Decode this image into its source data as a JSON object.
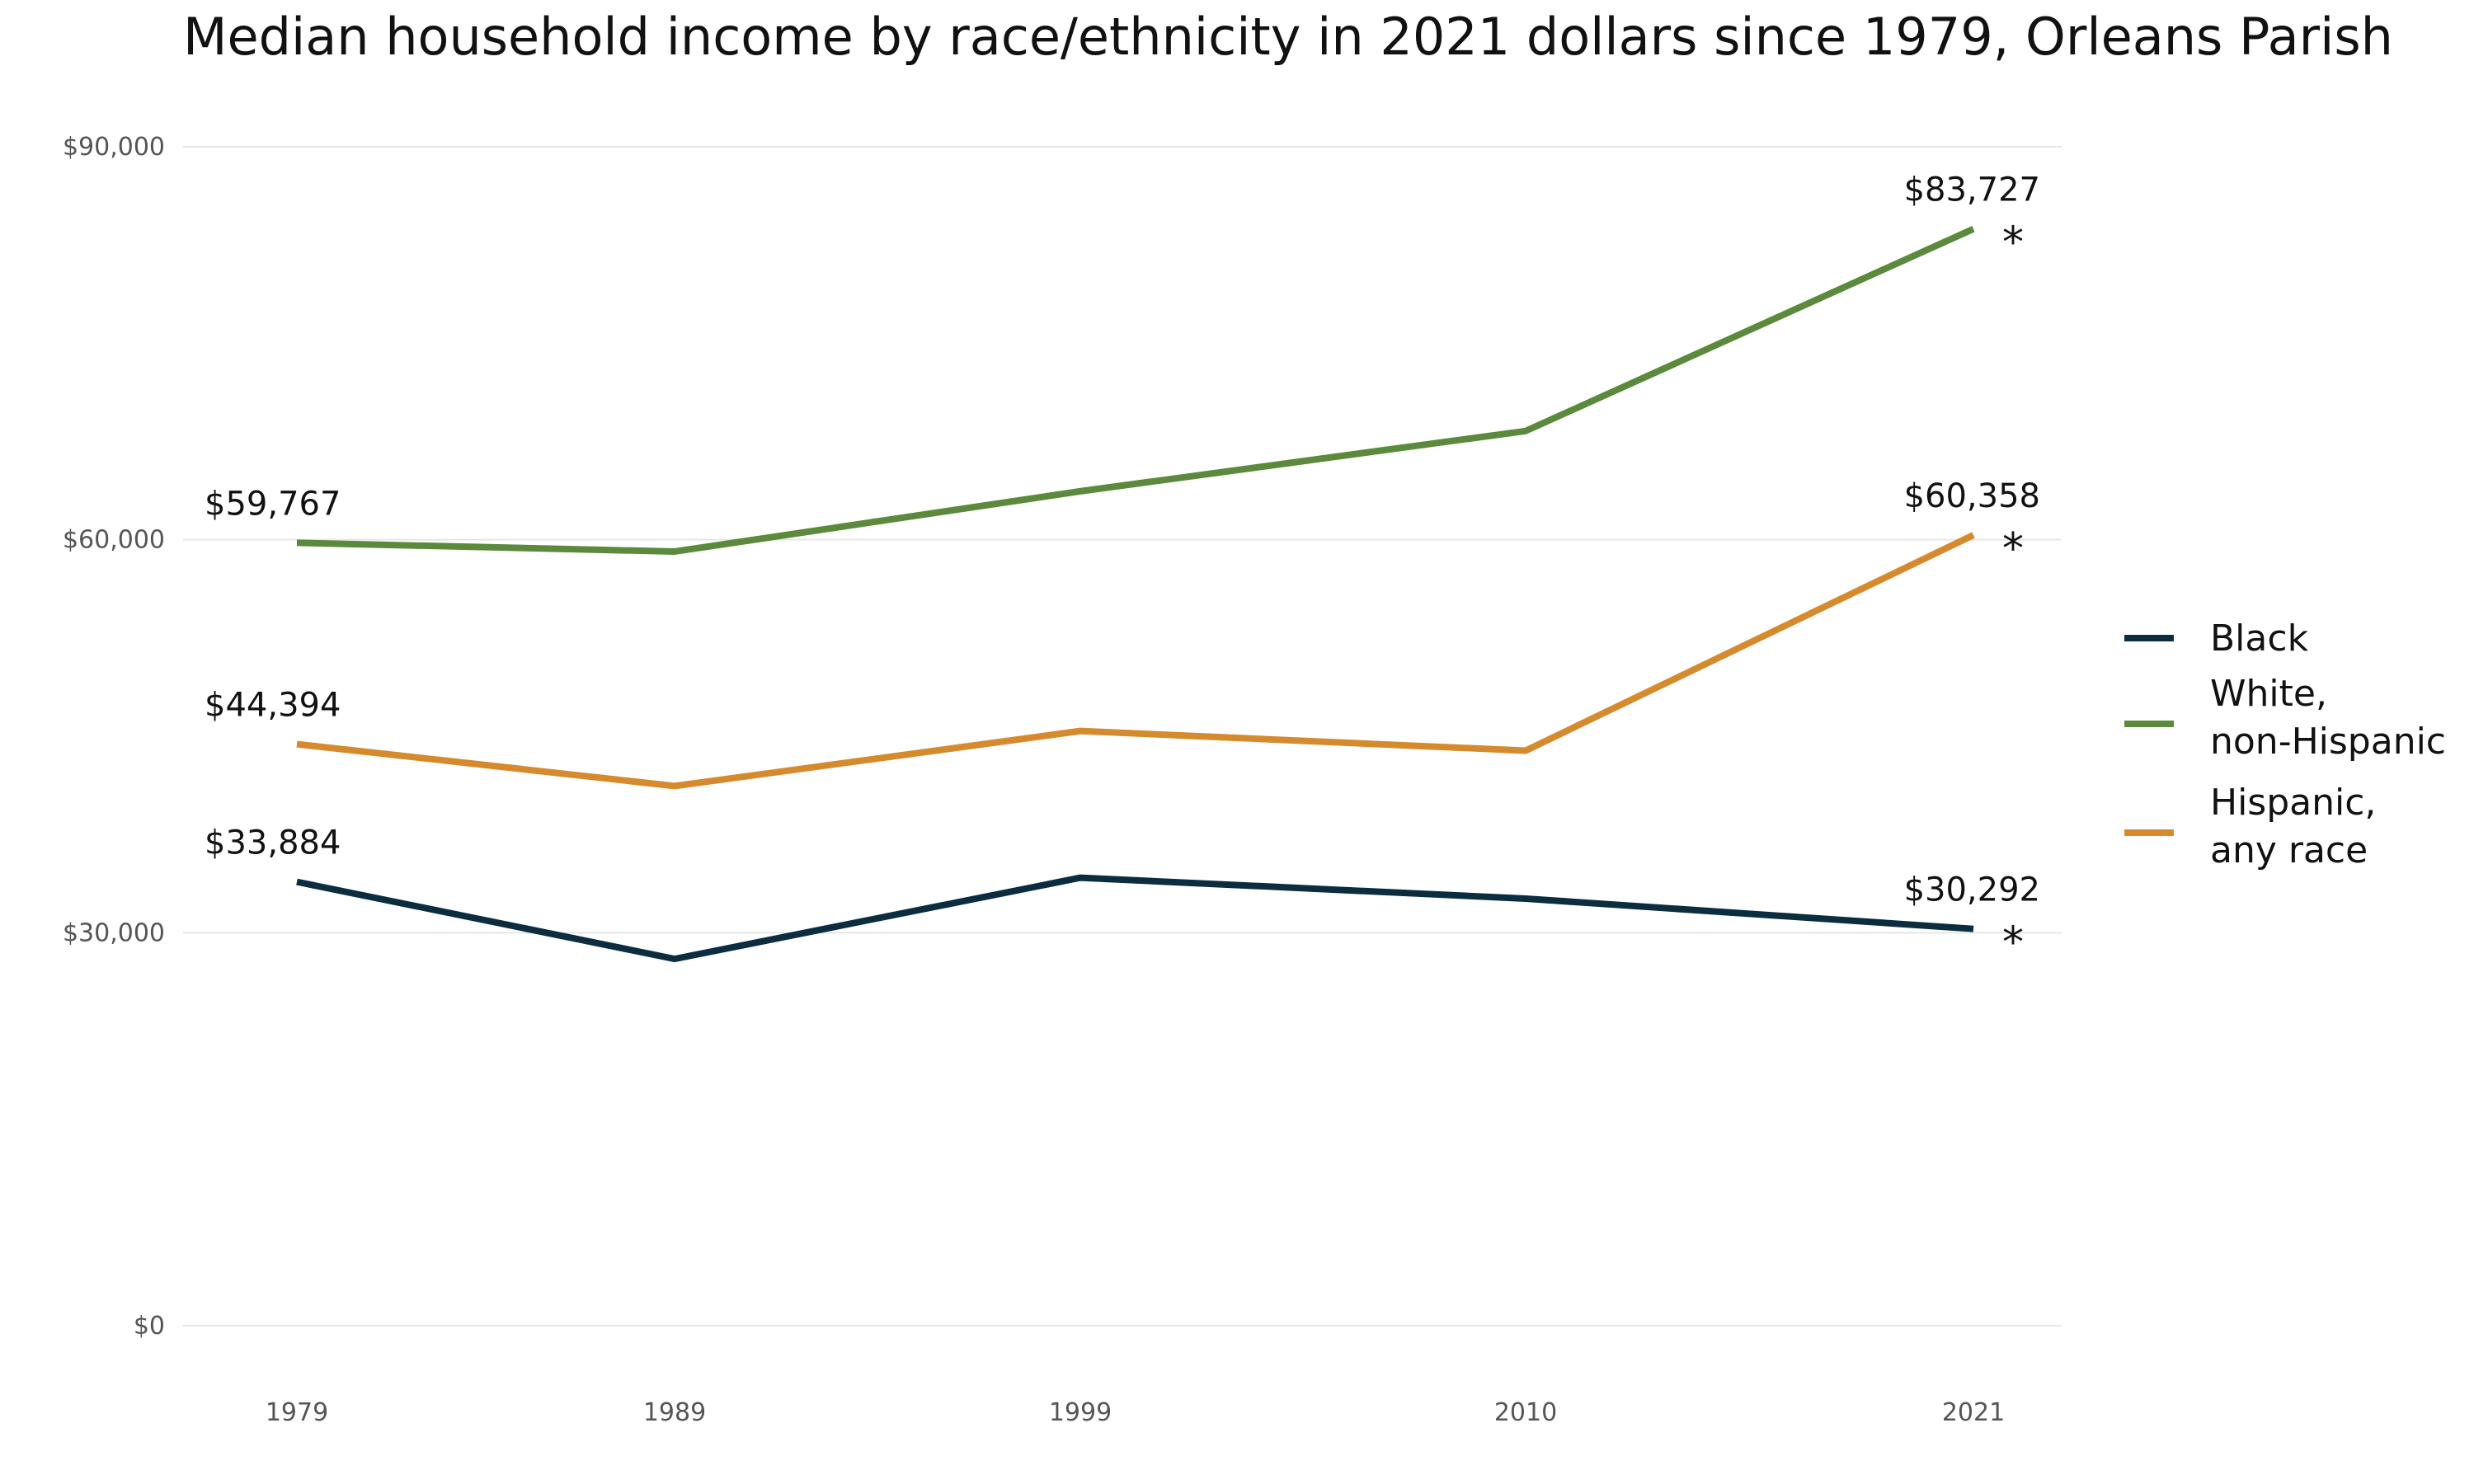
{
  "chart_data": {
    "type": "line",
    "title": "Median household income by race/ethnicity in 2021 dollars since 1979, Orleans Parish",
    "xlabel": "",
    "ylabel": "",
    "x": [
      "1979",
      "1989",
      "1999",
      "2010",
      "2021"
    ],
    "ylim": [
      0,
      90000
    ],
    "y_ticks": [
      0,
      30000,
      60000,
      90000
    ],
    "y_tick_labels": [
      "$0",
      "$30,000",
      "$60,000",
      "$90,000"
    ],
    "grid": true,
    "legend_position": "right",
    "series": [
      {
        "name": "Black",
        "color": "#0c2d3f",
        "values": [
          33884,
          28000,
          34200,
          32600,
          30292
        ],
        "start_label": "$33,884",
        "end_label": "$30,292",
        "end_marker": "*"
      },
      {
        "name": "White, non-Hispanic",
        "name_lines": [
          "White,",
          "non-Hispanic"
        ],
        "color": "#5b8a3c",
        "values": [
          59767,
          59100,
          63700,
          68300,
          83727
        ],
        "start_label": "$59,767",
        "end_label": "$83,727",
        "end_marker": "*"
      },
      {
        "name": "Hispanic, any race",
        "name_lines": [
          "Hispanic,",
          "any race"
        ],
        "color": "#d68a2e",
        "values": [
          44394,
          41200,
          45400,
          43900,
          60358
        ],
        "start_label": "$44,394",
        "end_label": "$60,358",
        "end_marker": "*"
      }
    ],
    "legend_order": [
      0,
      1,
      2
    ]
  }
}
